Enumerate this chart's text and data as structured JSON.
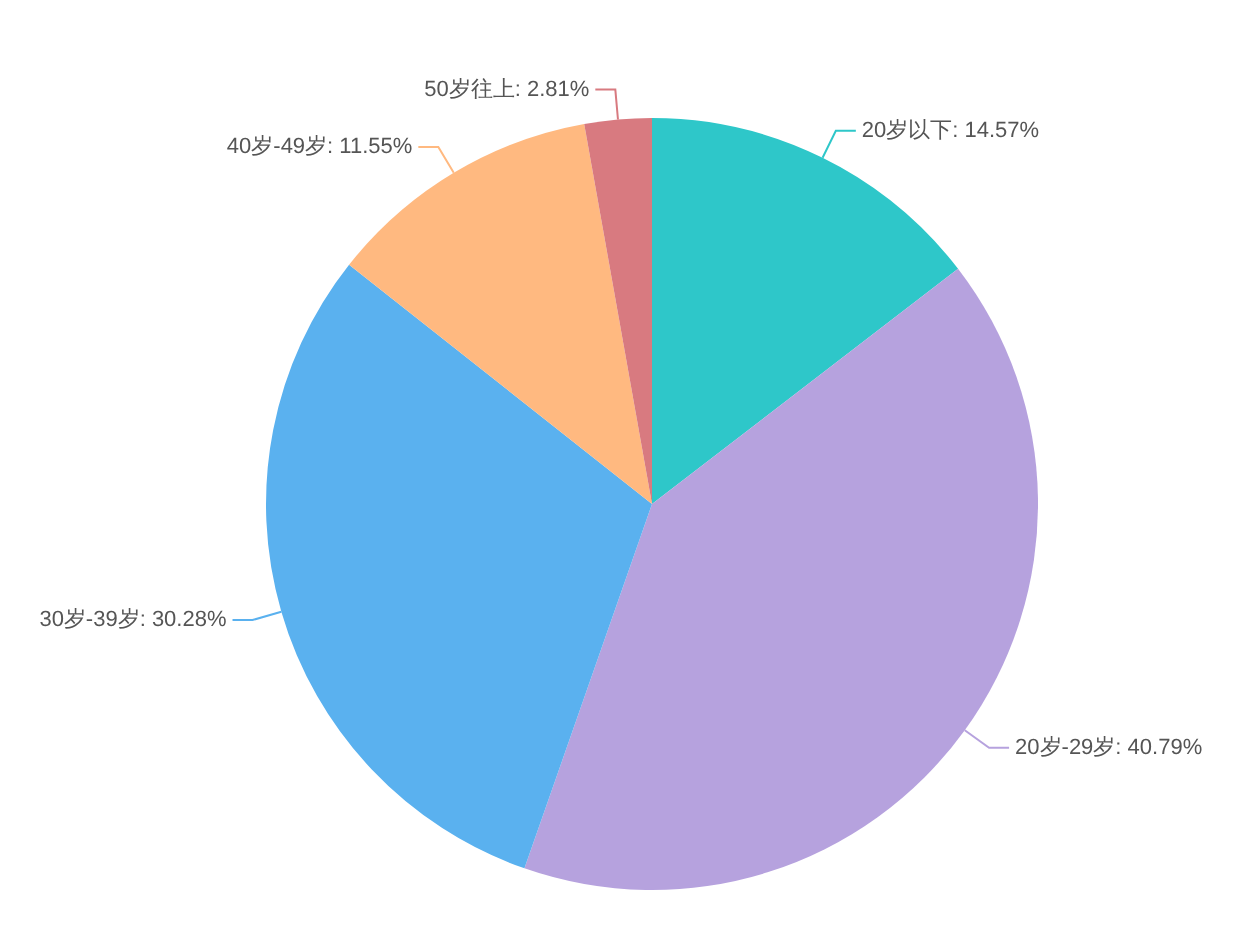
{
  "chart_data": {
    "type": "pie",
    "categories": [
      "20岁以下",
      "20岁-29岁",
      "30岁-39岁",
      "40岁-49岁",
      "50岁往上"
    ],
    "values": [
      14.57,
      40.79,
      30.28,
      11.55,
      2.81
    ],
    "value_labels": [
      "14.57%",
      "40.79%",
      "30.28%",
      "11.55%",
      "2.81%"
    ],
    "colors": [
      "#2ec7c9",
      "#b6a2de",
      "#5ab1ef",
      "#ffb980",
      "#d87a80"
    ],
    "legend": false
  }
}
